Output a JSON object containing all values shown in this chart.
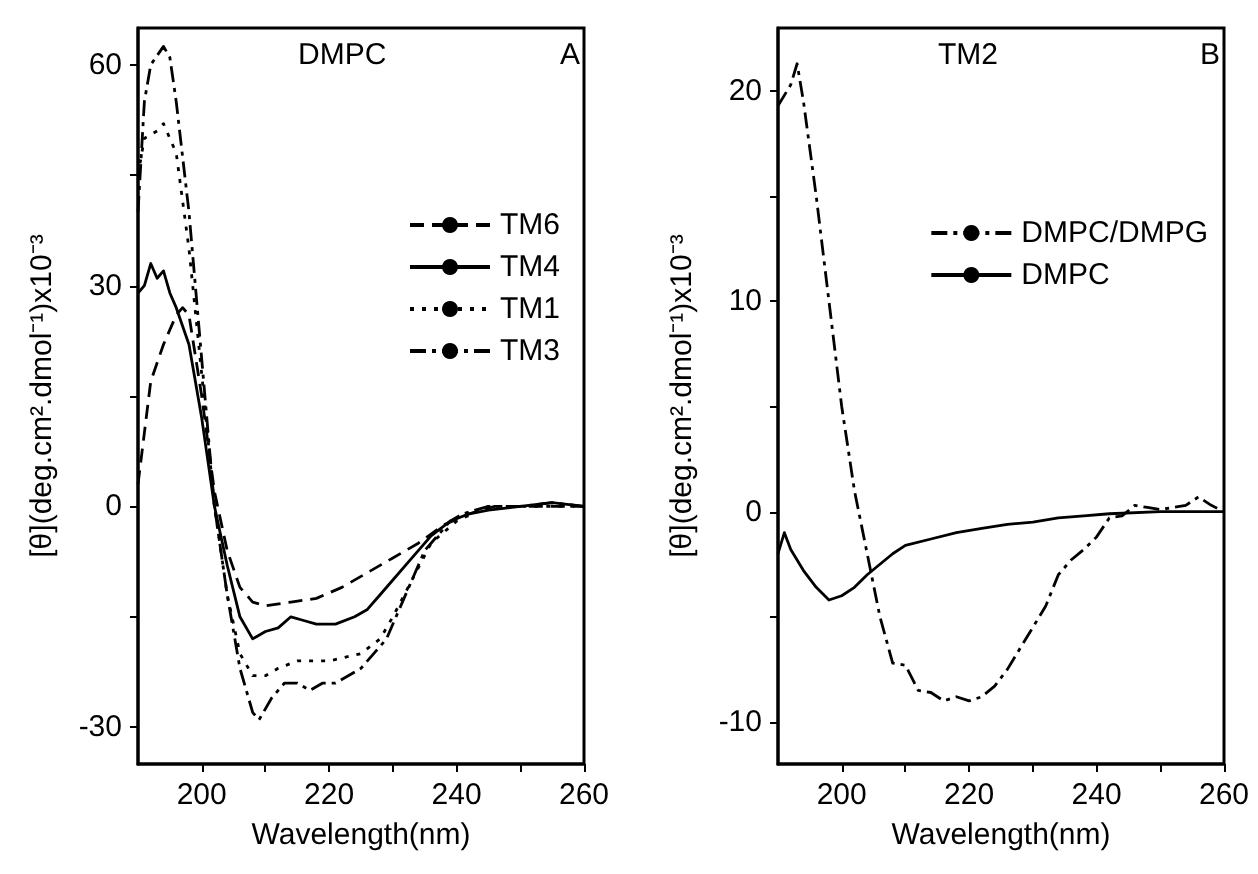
{
  "chart_data": [
    {
      "type": "line",
      "xlabel": "Wavelength(nm)",
      "ylabel": "[θ](deg.cm².dmol⁻¹)x10⁻³",
      "annotations": [
        "DMPC",
        "A"
      ],
      "legend": "right",
      "grid": false,
      "marker": "none",
      "xlim": [
        190,
        260
      ],
      "xticks": [
        200,
        {
          "value": 210,
          "label": null
        },
        220,
        {
          "value": 230,
          "label": null
        },
        240,
        {
          "value": 250,
          "label": null
        },
        260
      ],
      "ylim": [
        -35,
        65
      ],
      "yticks": [
        -30,
        {
          "value": -15,
          "label": null
        },
        0,
        {
          "value": 15,
          "label": null
        },
        30,
        {
          "value": 45,
          "label": null
        },
        60
      ],
      "series": [
        {
          "name": "TM6",
          "color": "#000000",
          "line_style": "dashed",
          "x": [
            190,
            191,
            192,
            194,
            196,
            197,
            198,
            200,
            202,
            204,
            206,
            208,
            210,
            214,
            218,
            222,
            226,
            230,
            234,
            238,
            242,
            246,
            250,
            260
          ],
          "values": [
            3,
            10,
            17,
            22,
            26,
            27,
            26,
            15,
            2,
            -6,
            -11,
            -13,
            -13.5,
            -13,
            -12.5,
            -11,
            -9,
            -7,
            -5,
            -2.5,
            -1,
            0,
            0,
            0
          ]
        },
        {
          "name": "TM4",
          "color": "#000000",
          "line_style": "solid",
          "x": [
            190,
            191,
            192,
            193,
            194,
            195,
            196,
            198,
            200,
            202,
            204,
            206,
            208,
            210,
            212,
            214,
            216,
            218,
            221,
            224,
            226,
            228,
            230,
            233,
            236,
            239,
            242,
            245,
            250,
            255,
            260
          ],
          "values": [
            29,
            30,
            33,
            31,
            32,
            29,
            27,
            22,
            12,
            0,
            -8,
            -15,
            -18,
            -17,
            -16.5,
            -15,
            -15.5,
            -16,
            -16,
            -15,
            -14,
            -12,
            -10,
            -7,
            -4,
            -2,
            -1,
            -0.5,
            0,
            0.5,
            0
          ]
        },
        {
          "name": "TM1",
          "color": "#000000",
          "line_style": "dotted",
          "x": [
            190,
            191,
            193,
            194,
            196,
            198,
            200,
            202,
            204,
            206,
            208,
            210,
            212,
            215,
            220,
            225,
            228,
            230,
            233,
            236,
            240,
            245,
            250,
            260
          ],
          "values": [
            45,
            50,
            51,
            52,
            48,
            35,
            18,
            0,
            -12,
            -20,
            -23,
            -23,
            -22,
            -21,
            -21,
            -20,
            -18,
            -15,
            -10,
            -5,
            -2,
            0,
            0,
            0
          ]
        },
        {
          "name": "TM3",
          "color": "#000000",
          "line_style": "dashdot",
          "x": [
            190,
            191,
            192,
            194,
            195,
            196,
            198,
            200,
            202,
            204,
            206,
            208,
            209,
            211,
            213,
            215,
            217,
            219,
            221,
            223,
            225,
            227,
            229,
            231,
            233,
            235,
            237,
            239,
            241,
            245,
            250,
            255,
            260
          ],
          "values": [
            40,
            55,
            60,
            62.5,
            61,
            55,
            40,
            20,
            0,
            -12,
            -22,
            -28,
            -29,
            -26,
            -24,
            -24,
            -25,
            -24,
            -24,
            -23,
            -22,
            -20,
            -18,
            -14,
            -10,
            -6,
            -4,
            -2,
            -1,
            0,
            0,
            0.5,
            0
          ]
        }
      ]
    },
    {
      "type": "line",
      "xlabel": "Wavelength(nm)",
      "ylabel": "[θ](deg.cm².dmol⁻¹)x10⁻³",
      "annotations": [
        "TM2",
        "B"
      ],
      "legend": "top right",
      "grid": false,
      "marker": "none",
      "xlim": [
        190,
        260
      ],
      "xticks": [
        200,
        {
          "value": 210,
          "label": null
        },
        220,
        {
          "value": 230,
          "label": null
        },
        240,
        {
          "value": 250,
          "label": null
        },
        260
      ],
      "ylim": [
        -12,
        23
      ],
      "yticks": [
        -10,
        {
          "value": -5,
          "label": null
        },
        0,
        {
          "value": 5,
          "label": null
        },
        10,
        {
          "value": 15,
          "label": null
        },
        20
      ],
      "series": [
        {
          "name": "DMPC/DMPG",
          "color": "#000000",
          "line_style": "dashdot",
          "x": [
            190,
            192,
            193,
            194,
            196,
            198,
            200,
            202,
            204,
            206,
            208,
            210,
            212,
            214,
            216,
            218,
            220,
            222,
            224,
            226,
            228,
            230,
            232,
            234,
            236,
            238,
            240,
            242,
            244,
            246,
            248,
            250,
            254,
            256,
            258,
            260
          ],
          "values": [
            19.3,
            20.3,
            21.3,
            19.5,
            15,
            10,
            5,
            1,
            -2,
            -5,
            -7.2,
            -7.3,
            -8.5,
            -8.6,
            -9,
            -8.8,
            -9,
            -8.8,
            -8.3,
            -7.5,
            -6.5,
            -5.5,
            -4.5,
            -3,
            -2.3,
            -1.8,
            -1.2,
            -0.3,
            -0.2,
            0.3,
            0.2,
            0.1,
            0.3,
            0.7,
            0.3,
            0
          ]
        },
        {
          "name": "DMPC",
          "color": "#000000",
          "line_style": "solid",
          "x": [
            190,
            191,
            192,
            194,
            196,
            198,
            200,
            202,
            204,
            206,
            208,
            210,
            214,
            218,
            222,
            226,
            230,
            234,
            238,
            242,
            250,
            260
          ],
          "values": [
            -2,
            -1,
            -1.8,
            -2.8,
            -3.6,
            -4.2,
            -4,
            -3.6,
            -3,
            -2.5,
            -2,
            -1.6,
            -1.3,
            -1,
            -0.8,
            -0.6,
            -0.5,
            -0.3,
            -0.2,
            -0.1,
            0,
            0
          ]
        }
      ]
    }
  ]
}
